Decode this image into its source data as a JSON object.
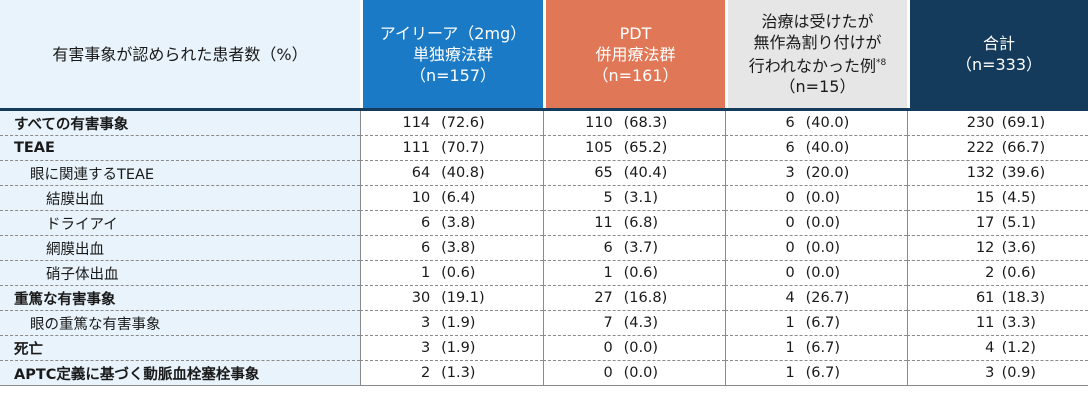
{
  "header": {
    "label_col": "有害事象が認められた患者数（%）",
    "groups": [
      {
        "line1": "アイリーア（2mg）",
        "line2": "単独療法群",
        "line3": "（n=157）",
        "line4": ""
      },
      {
        "line1": "PDT",
        "line2": "併用療法群",
        "line3": "（n=161）",
        "line4": ""
      },
      {
        "line1": "治療は受けたが",
        "line2": "無作為割り付けが",
        "line3": "行われなかった例",
        "line3_sup": "*8",
        "line4": "（n=15）"
      },
      {
        "line1": "合計",
        "line2": "（n=333）",
        "line3": "",
        "line4": ""
      }
    ]
  },
  "colors": {
    "label_bg": "#e8f3fb",
    "col1": "#1a7ac6",
    "col2": "#e07858",
    "col3": "#e6e6e6",
    "col4": "#143a5c"
  },
  "rows": [
    {
      "label": "すべての有害事象",
      "style": "bold",
      "cells": [
        [
          "114",
          "(72.6)"
        ],
        [
          "110",
          "(68.3)"
        ],
        [
          "6",
          "(40.0)"
        ],
        [
          "230",
          "(69.1)"
        ]
      ]
    },
    {
      "label": "TEAE",
      "style": "bold",
      "cells": [
        [
          "111",
          "(70.7)"
        ],
        [
          "105",
          "(65.2)"
        ],
        [
          "6",
          "(40.0)"
        ],
        [
          "222",
          "(66.7)"
        ]
      ]
    },
    {
      "label": "眼に関連するTEAE",
      "style": "ind1",
      "cells": [
        [
          "64",
          "(40.8)"
        ],
        [
          "65",
          "(40.4)"
        ],
        [
          "3",
          "(20.0)"
        ],
        [
          "132",
          "(39.6)"
        ]
      ]
    },
    {
      "label": "結膜出血",
      "style": "ind2",
      "cells": [
        [
          "10",
          "(6.4)"
        ],
        [
          "5",
          "(3.1)"
        ],
        [
          "0",
          "(0.0)"
        ],
        [
          "15",
          "(4.5)"
        ]
      ]
    },
    {
      "label": "ドライアイ",
      "style": "ind2",
      "cells": [
        [
          "6",
          "(3.8)"
        ],
        [
          "11",
          "(6.8)"
        ],
        [
          "0",
          "(0.0)"
        ],
        [
          "17",
          "(5.1)"
        ]
      ]
    },
    {
      "label": "網膜出血",
      "style": "ind2",
      "cells": [
        [
          "6",
          "(3.8)"
        ],
        [
          "6",
          "(3.7)"
        ],
        [
          "0",
          "(0.0)"
        ],
        [
          "12",
          "(3.6)"
        ]
      ]
    },
    {
      "label": "硝子体出血",
      "style": "ind2",
      "cells": [
        [
          "1",
          "(0.6)"
        ],
        [
          "1",
          "(0.6)"
        ],
        [
          "0",
          "(0.0)"
        ],
        [
          "2",
          "(0.6)"
        ]
      ]
    },
    {
      "label": "重篤な有害事象",
      "style": "bold",
      "cells": [
        [
          "30",
          "(19.1)"
        ],
        [
          "27",
          "(16.8)"
        ],
        [
          "4",
          "(26.7)"
        ],
        [
          "61",
          "(18.3)"
        ]
      ]
    },
    {
      "label": "眼の重篤な有害事象",
      "style": "ind1",
      "cells": [
        [
          "3",
          "(1.9)"
        ],
        [
          "7",
          "(4.3)"
        ],
        [
          "1",
          "(6.7)"
        ],
        [
          "11",
          "(3.3)"
        ]
      ]
    },
    {
      "label": "死亡",
      "style": "bold",
      "cells": [
        [
          "3",
          "(1.9)"
        ],
        [
          "0",
          "(0.0)"
        ],
        [
          "1",
          "(6.7)"
        ],
        [
          "4",
          "(1.2)"
        ]
      ]
    },
    {
      "label": "APTC定義に基づく動脈血栓塞栓事象",
      "style": "bold",
      "cells": [
        [
          "2",
          "(1.3)"
        ],
        [
          "0",
          "(0.0)"
        ],
        [
          "1",
          "(6.7)"
        ],
        [
          "3",
          "(0.9)"
        ]
      ]
    }
  ]
}
